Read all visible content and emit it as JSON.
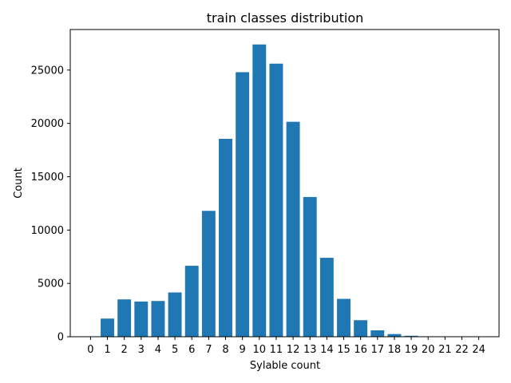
{
  "chart_data": {
    "type": "bar",
    "title": "train classes distribution",
    "xlabel": "Sylable count",
    "ylabel": "Count",
    "categories": [
      "0",
      "1",
      "2",
      "3",
      "4",
      "5",
      "6",
      "7",
      "8",
      "9",
      "10",
      "11",
      "12",
      "13",
      "14",
      "15",
      "16",
      "17",
      "18",
      "19",
      "20",
      "21",
      "22",
      "24"
    ],
    "values": [
      0,
      1700,
      3500,
      3300,
      3350,
      4150,
      6650,
      11800,
      18550,
      24800,
      27400,
      25600,
      20150,
      13100,
      7400,
      3550,
      1550,
      600,
      250,
      90,
      40,
      15,
      8,
      3
    ],
    "ylim": [
      0,
      28800
    ],
    "yticks": [
      0,
      5000,
      10000,
      15000,
      20000,
      25000
    ],
    "bar_color": "#1f77b4",
    "grid": false,
    "legend": "none"
  }
}
